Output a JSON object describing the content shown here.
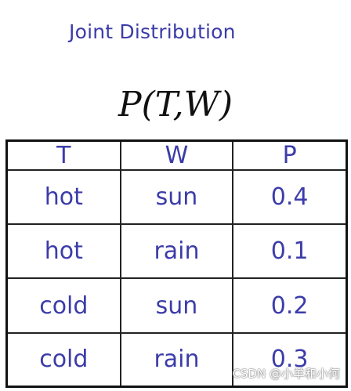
{
  "slide": {
    "title": "Joint Distribution",
    "formula": "P(T,W)"
  },
  "table": {
    "headers": [
      "T",
      "W",
      "P"
    ],
    "rows": [
      [
        "hot",
        "sun",
        "0.4"
      ],
      [
        "hot",
        "rain",
        "0.1"
      ],
      [
        "cold",
        "sun",
        "0.2"
      ],
      [
        "cold",
        "rain",
        "0.3"
      ]
    ]
  },
  "watermark": "CSDN @小羊和小何",
  "colors": {
    "title_text": "#3c3caa",
    "table_text": "#3c3caa",
    "grid_lines": "#222222",
    "background": "#ffffff"
  }
}
